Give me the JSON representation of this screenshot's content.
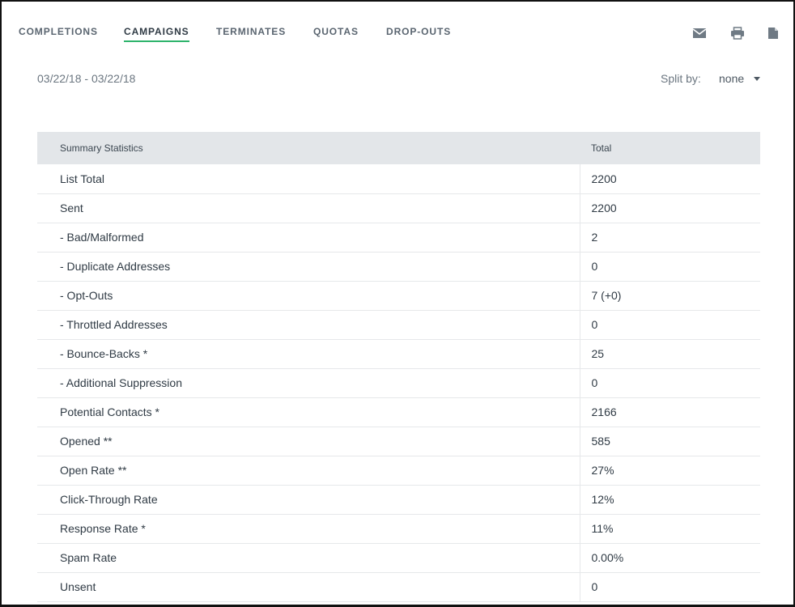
{
  "tabs": [
    {
      "label": "COMPLETIONS",
      "active": false
    },
    {
      "label": "CAMPAIGNS",
      "active": true
    },
    {
      "label": "TERMINATES",
      "active": false
    },
    {
      "label": "QUOTAS",
      "active": false
    },
    {
      "label": "DROP-OUTS",
      "active": false
    }
  ],
  "toolbar_icons": [
    "envelope-icon",
    "printer-icon",
    "document-icon"
  ],
  "date_range": "03/22/18 - 03/22/18",
  "split_by": {
    "label": "Split by:",
    "value": "none"
  },
  "table": {
    "headers": [
      "Summary Statistics",
      "Total"
    ],
    "rows": [
      {
        "label": "List Total",
        "value": "2200"
      },
      {
        "label": "Sent",
        "value": "2200"
      },
      {
        "label": "- Bad/Malformed",
        "value": "2"
      },
      {
        "label": "- Duplicate Addresses",
        "value": "0"
      },
      {
        "label": "- Opt-Outs",
        "value": "7 (+0)"
      },
      {
        "label": "- Throttled Addresses",
        "value": "0"
      },
      {
        "label": "- Bounce-Backs *",
        "value": "25"
      },
      {
        "label": "- Additional Suppression",
        "value": "0"
      },
      {
        "label": "Potential Contacts *",
        "value": "2166"
      },
      {
        "label": "Opened **",
        "value": "585"
      },
      {
        "label": "Open Rate **",
        "value": "27%"
      },
      {
        "label": "Click-Through Rate",
        "value": "12%"
      },
      {
        "label": "Response Rate *",
        "value": "11%"
      },
      {
        "label": "Spam Rate",
        "value": "0.00%"
      },
      {
        "label": "Unsent",
        "value": "0"
      }
    ]
  },
  "colors": {
    "accent": "#2db36b",
    "header_bg": "#e3e6e9",
    "text": "#2f3a44",
    "muted": "#6b7680"
  }
}
